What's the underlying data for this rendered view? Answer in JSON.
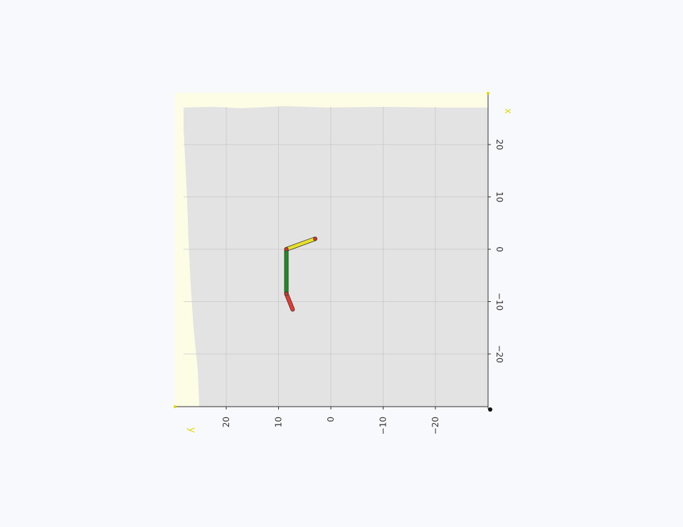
{
  "scene": {
    "background_color": "#f8f9fc",
    "floor_color": "#e3e3e3",
    "floor_edge_color": "#fdfde6",
    "grid_color": "#c8c8c8",
    "axis_color": "#333333",
    "axis_label_color": "#e0d800"
  },
  "axes": {
    "x_axis_label": "x",
    "y_axis_label": "y",
    "x_ticks": [
      "20",
      "10",
      "0",
      "−10",
      "−20"
    ],
    "y_ticks": [
      "20",
      "10",
      "0",
      "−10",
      "−20"
    ],
    "x_range": [
      -30,
      30
    ],
    "y_range": [
      -30,
      30
    ]
  },
  "robot": {
    "segments": [
      {
        "name": "link-1",
        "color": "#e8e02a",
        "from": [
          2,
          3
        ],
        "to": [
          0,
          8.5
        ]
      },
      {
        "name": "link-2",
        "color": "#1f8a1f",
        "from": [
          0,
          8.5
        ],
        "to": [
          -8.5,
          8.5
        ]
      },
      {
        "name": "link-3",
        "color": "#e83a2e",
        "from": [
          -8.5,
          8.5
        ],
        "to": [
          -11.5,
          7.3
        ]
      }
    ],
    "joints": [
      {
        "name": "joint-base",
        "pos": [
          2,
          3
        ]
      },
      {
        "name": "joint-1",
        "pos": [
          0,
          8.5
        ]
      },
      {
        "name": "joint-2",
        "pos": [
          -8.5,
          8.5
        ]
      }
    ]
  }
}
